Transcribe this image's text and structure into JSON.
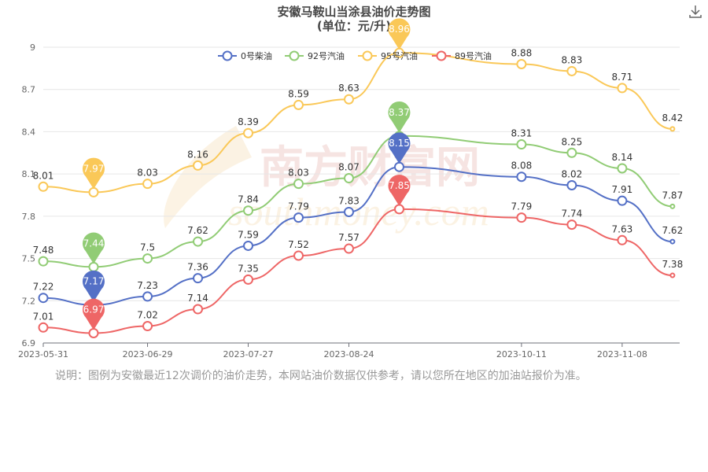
{
  "toolbar": {
    "download_icon": "download-icon"
  },
  "watermark": {
    "brand": "南方财富网",
    "url": "southmoney.com"
  },
  "note": "说明：图例为安徽最近12次调价的油价走势，本网站油价数据仅供参考，请以您所在地区的加油站报价为准。",
  "chart_data": {
    "type": "line",
    "title": "安徽马鞍山当涂县油价走势图",
    "subtitle": "(单位：元/升)",
    "xlabel": "",
    "ylabel": "",
    "ylim": [
      6.9,
      9.0
    ],
    "yticks": [
      6.9,
      7.2,
      7.5,
      7.8,
      8.1,
      8.4,
      8.7,
      9
    ],
    "ytick_labels": [
      "6.9",
      "7.2",
      "7.5",
      "7.8",
      "8.1",
      "8.4",
      "8.7",
      "9"
    ],
    "xlim": [
      "2023-05-31",
      "2023-11-24"
    ],
    "xticks": [
      "2023-05-31",
      "2023-06-29",
      "2023-07-27",
      "2023-08-24",
      "2023-10-11",
      "2023-11-08"
    ],
    "x": [
      "2023-05-31",
      "2023-06-14",
      "2023-06-29",
      "2023-07-13",
      "2023-07-27",
      "2023-08-10",
      "2023-08-24",
      "2023-09-07",
      "2023-10-11",
      "2023-10-25",
      "2023-11-08",
      "2023-11-22"
    ],
    "legend_position": "top",
    "smooth": true,
    "series": [
      {
        "name": "0号柴油",
        "color": "#5470c6",
        "values": [
          7.22,
          7.17,
          7.23,
          7.36,
          7.59,
          7.79,
          7.83,
          8.15,
          8.08,
          8.02,
          7.91,
          7.62
        ],
        "min_index": 1,
        "max_index": 7
      },
      {
        "name": "92号汽油",
        "color": "#91cc75",
        "values": [
          7.48,
          7.44,
          7.5,
          7.62,
          7.84,
          8.03,
          8.07,
          8.37,
          8.31,
          8.25,
          8.14,
          7.87
        ],
        "min_index": 1,
        "max_index": 7
      },
      {
        "name": "95号汽油",
        "color": "#fac858",
        "values": [
          8.01,
          7.97,
          8.03,
          8.16,
          8.39,
          8.59,
          8.63,
          8.96,
          8.88,
          8.83,
          8.71,
          8.42
        ],
        "min_index": 1,
        "max_index": 7
      },
      {
        "name": "89号汽油",
        "color": "#ee6666",
        "values": [
          7.01,
          6.97,
          7.02,
          7.14,
          7.35,
          7.52,
          7.57,
          7.85,
          7.79,
          7.74,
          7.63,
          7.38
        ],
        "min_index": 1,
        "max_index": 7
      }
    ]
  }
}
